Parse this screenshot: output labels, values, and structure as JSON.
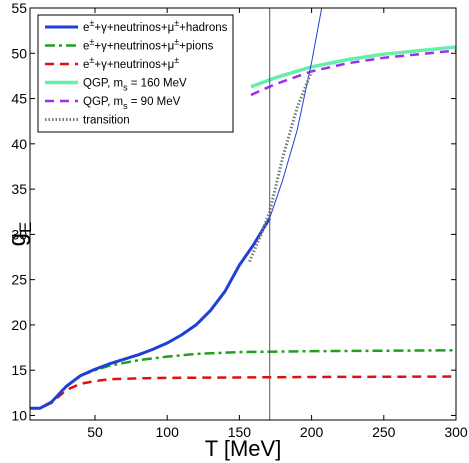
{
  "chart_data": {
    "type": "line",
    "xlabel": "T [MeV]",
    "ylabel": "g_E",
    "ylabel_main": "g",
    "ylabel_sub": "E",
    "xlim": [
      5,
      300
    ],
    "ylim": [
      9.5,
      55
    ],
    "xticks": [
      50,
      100,
      150,
      200,
      250,
      300
    ],
    "yticks": [
      10,
      15,
      20,
      25,
      30,
      35,
      40,
      45,
      50,
      55
    ],
    "grid": false,
    "legend_position": "top-left",
    "vline_x": 171,
    "series": [
      {
        "name": "e±+γ+neutrinos+μ±+hadrons",
        "legend_parts": [
          "e",
          "±",
          "+γ+neutrinos+μ",
          "±",
          "+hadrons"
        ],
        "color": "#1f3fd6",
        "style": "solid",
        "width": 3,
        "x": [
          5,
          12,
          20,
          30,
          40,
          50,
          60,
          70,
          80,
          90,
          100,
          110,
          120,
          130,
          140,
          150,
          160,
          171
        ],
        "y": [
          10.8,
          10.8,
          11.5,
          13.2,
          14.4,
          15.1,
          15.7,
          16.2,
          16.7,
          17.3,
          18.0,
          18.9,
          20.0,
          21.6,
          23.7,
          26.6,
          28.9,
          31.8
        ]
      },
      {
        "name": "hadron extrapolation",
        "color": "#1f3fd6",
        "style": "thin",
        "x": [
          171,
          180,
          190,
          200,
          207
        ],
        "y": [
          31.8,
          36.0,
          41.5,
          49.0,
          55.0
        ]
      },
      {
        "name": "e±+γ+neutrinos+μ±+pions",
        "legend_parts": [
          "e",
          "±",
          "+γ+neutrinos+μ",
          "±",
          "+pions"
        ],
        "color": "#1fa01f",
        "style": "dashdot",
        "width": 2.5,
        "x": [
          5,
          12,
          20,
          30,
          40,
          50,
          60,
          70,
          80,
          100,
          120,
          150,
          200,
          250,
          300
        ],
        "y": [
          10.8,
          10.8,
          11.5,
          13.2,
          14.4,
          15.0,
          15.5,
          15.8,
          16.1,
          16.5,
          16.8,
          17.0,
          17.1,
          17.15,
          17.2
        ]
      },
      {
        "name": "e±+γ+neutrinos+μ±",
        "legend_parts": [
          "e",
          "±",
          "+γ+neutrinos+μ",
          "±",
          ""
        ],
        "color": "#e01010",
        "style": "dash",
        "width": 2.5,
        "x": [
          5,
          12,
          20,
          30,
          40,
          50,
          60,
          80,
          100,
          150,
          200,
          300
        ],
        "y": [
          10.8,
          10.8,
          11.4,
          12.8,
          13.5,
          13.8,
          14.0,
          14.1,
          14.15,
          14.2,
          14.25,
          14.3
        ]
      },
      {
        "name": "QGP, m_s = 160 MeV",
        "legend_main": "QGP, m",
        "legend_sub": "s",
        "legend_tail": " = 160 MeV",
        "color": "#66eeaa",
        "style": "solid",
        "width": 3.5,
        "x": [
          158,
          175,
          200,
          225,
          250,
          275,
          300
        ],
        "y": [
          46.3,
          47.3,
          48.5,
          49.3,
          49.9,
          50.3,
          50.7
        ]
      },
      {
        "name": "QGP, m_s = 90 MeV",
        "legend_main": "QGP, m",
        "legend_sub": "s",
        "legend_tail": " = 90 MeV",
        "color": "#9a30ee",
        "style": "dash",
        "width": 2.5,
        "x": [
          158,
          175,
          200,
          225,
          250,
          275,
          300
        ],
        "y": [
          45.4,
          46.6,
          48.0,
          48.9,
          49.5,
          49.9,
          50.3
        ]
      },
      {
        "name": "transition",
        "color": "#777777",
        "style": "dotted",
        "width": 3,
        "x": [
          157,
          165,
          171,
          180,
          190,
          200
        ],
        "y": [
          27.0,
          30.0,
          32.5,
          38.5,
          44.0,
          48.0
        ]
      }
    ],
    "legend": [
      {
        "series": 0
      },
      {
        "series": 2
      },
      {
        "series": 3
      },
      {
        "series": 4
      },
      {
        "series": 5
      },
      {
        "series": 6
      }
    ]
  }
}
